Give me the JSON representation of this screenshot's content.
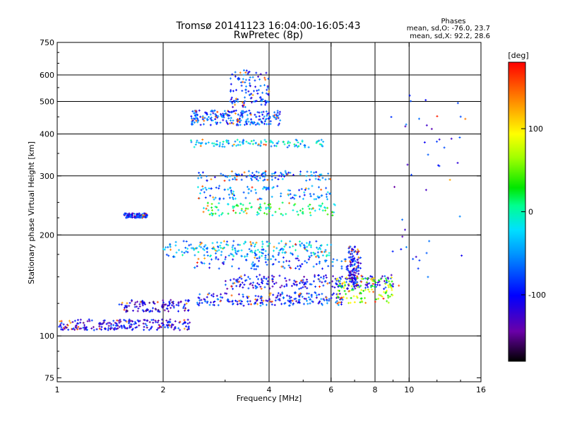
{
  "chart_data": {
    "type": "scatter",
    "title_line1": "Tromsø 20141123 16:04:00-16:05:43",
    "title_line2": "RwPretec (8p)",
    "phase_box": {
      "heading": "Phases",
      "line1": "mean, sd,O: -76.0, 23.7",
      "line2": "mean, sd,X: 92.2, 28.6"
    },
    "xlabel": "Frequency [MHz]",
    "ylabel": "Stationary phase Virtual Height [km]",
    "xscale": "log",
    "yscale": "log",
    "xlim": [
      1,
      16
    ],
    "ylim": [
      73,
      750
    ],
    "x_ticks": [
      1,
      2,
      4,
      6,
      8,
      10,
      16
    ],
    "x_tick_labels": [
      "1",
      "2",
      "4",
      "6",
      "8",
      "10",
      "16"
    ],
    "x_gridlines": [
      2,
      4,
      6,
      8,
      10
    ],
    "y_ticks": [
      75,
      100,
      200,
      300,
      400,
      500,
      600,
      750
    ],
    "y_tick_labels": [
      "75",
      "100",
      "200",
      "300",
      "400",
      "500",
      "600",
      "750"
    ],
    "y_gridlines": [
      100,
      200,
      300,
      400,
      500,
      600
    ],
    "colorbar": {
      "label": "[deg]",
      "range": [
        -180,
        180
      ],
      "ticks": [
        100,
        0,
        -100
      ],
      "tick_labels": [
        "100",
        "0",
        "-100"
      ]
    },
    "traces": [
      {
        "name": "E-region trace",
        "freq_range": [
          1.0,
          2.4
        ],
        "height_range": [
          104,
          112
        ],
        "phase_deg": -110,
        "density": "dense"
      },
      {
        "name": "sporadic trace 1.5-2.4 MHz",
        "freq_range": [
          1.5,
          2.4
        ],
        "height_range": [
          118,
          128
        ],
        "phase_deg": -115,
        "density": "medium"
      },
      {
        "name": "isolated trace near 1.7 MHz",
        "freq_range": [
          1.55,
          1.8
        ],
        "height_range": [
          225,
          232
        ],
        "phase_deg": -95,
        "density": "medium"
      },
      {
        "name": "band 130 km",
        "freq_range": [
          2.5,
          6.5
        ],
        "height_range": [
          123,
          135
        ],
        "phase_deg": -90,
        "density": "dense"
      },
      {
        "name": "band 145 km",
        "freq_range": [
          3.0,
          9.0
        ],
        "height_range": [
          138,
          152
        ],
        "phase_deg": -105,
        "density": "dense"
      },
      {
        "name": "band 165 km",
        "freq_range": [
          2.4,
          7.5
        ],
        "height_range": [
          158,
          172
        ],
        "phase_deg": -80,
        "density": "medium"
      },
      {
        "name": "band 180 km",
        "freq_range": [
          2.0,
          6.0
        ],
        "height_range": [
          172,
          192
        ],
        "phase_deg": -40,
        "density": "dense"
      },
      {
        "name": "band 235 km",
        "freq_range": [
          2.6,
          6.2
        ],
        "height_range": [
          228,
          250
        ],
        "phase_deg": 10,
        "density": "medium"
      },
      {
        "name": "band 265 km",
        "freq_range": [
          2.5,
          6.0
        ],
        "height_range": [
          255,
          280
        ],
        "phase_deg": -60,
        "density": "medium"
      },
      {
        "name": "band 300 km",
        "freq_range": [
          2.5,
          6.0
        ],
        "height_range": [
          290,
          310
        ],
        "phase_deg": -70,
        "density": "medium"
      },
      {
        "name": "band 375 km",
        "freq_range": [
          2.4,
          5.8
        ],
        "height_range": [
          365,
          385
        ],
        "phase_deg": -30,
        "density": "medium"
      },
      {
        "name": "band 450 km",
        "freq_range": [
          2.4,
          4.3
        ],
        "height_range": [
          425,
          470
        ],
        "phase_deg": -80,
        "density": "dense"
      },
      {
        "name": "cluster 500-600 km",
        "freq_range": [
          3.1,
          4.0
        ],
        "height_range": [
          480,
          620
        ],
        "phase_deg": -90,
        "density": "medium"
      },
      {
        "name": "high-frequency X trace",
        "freq_range": [
          6.2,
          9.0
        ],
        "height_range": [
          125,
          150
        ],
        "phase_deg": 60,
        "density": "medium"
      },
      {
        "name": "vertical streak 6.8 MHz",
        "freq_range": [
          6.7,
          7.2
        ],
        "height_range": [
          140,
          185
        ],
        "phase_deg": -110,
        "density": "medium"
      },
      {
        "name": "scattered high-frequency echoes",
        "freq_range": [
          8.5,
          14.5
        ],
        "height_range": [
          140,
          560
        ],
        "phase_deg": -100,
        "density": "sparse"
      }
    ]
  }
}
